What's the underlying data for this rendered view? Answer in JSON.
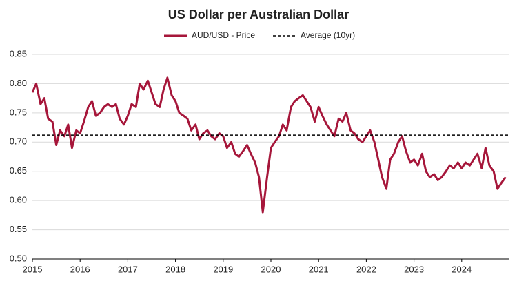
{
  "chart_data": {
    "type": "line",
    "title": "US Dollar per Australian Dollar",
    "x": [
      2015,
      2015.08,
      2015.17,
      2015.25,
      2015.33,
      2015.42,
      2015.5,
      2015.58,
      2015.67,
      2015.75,
      2015.83,
      2015.92,
      2016,
      2016.08,
      2016.17,
      2016.25,
      2016.33,
      2016.42,
      2016.5,
      2016.58,
      2016.67,
      2016.75,
      2016.83,
      2016.92,
      2017,
      2017.08,
      2017.17,
      2017.25,
      2017.33,
      2017.42,
      2017.5,
      2017.58,
      2017.67,
      2017.75,
      2017.83,
      2017.92,
      2018,
      2018.08,
      2018.17,
      2018.25,
      2018.33,
      2018.42,
      2018.5,
      2018.58,
      2018.67,
      2018.75,
      2018.83,
      2018.92,
      2019,
      2019.08,
      2019.17,
      2019.25,
      2019.33,
      2019.42,
      2019.5,
      2019.58,
      2019.67,
      2019.75,
      2019.83,
      2019.92,
      2020,
      2020.08,
      2020.17,
      2020.25,
      2020.33,
      2020.42,
      2020.5,
      2020.58,
      2020.67,
      2020.75,
      2020.83,
      2020.92,
      2021,
      2021.08,
      2021.17,
      2021.25,
      2021.33,
      2021.42,
      2021.5,
      2021.58,
      2021.67,
      2021.75,
      2021.83,
      2021.92,
      2022,
      2022.08,
      2022.17,
      2022.25,
      2022.33,
      2022.42,
      2022.5,
      2022.58,
      2022.67,
      2022.75,
      2022.83,
      2022.92,
      2023,
      2023.08,
      2023.17,
      2023.25,
      2023.33,
      2023.42,
      2023.5,
      2023.58,
      2023.67,
      2023.75,
      2023.83,
      2023.92,
      2024,
      2024.08,
      2024.17,
      2024.25,
      2024.33,
      2024.42,
      2024.5,
      2024.58,
      2024.67,
      2024.75,
      2024.83,
      2024.92
    ],
    "series": [
      {
        "name": "AUD/USD - Price",
        "color": "#a6163a",
        "values": [
          0.785,
          0.8,
          0.765,
          0.775,
          0.74,
          0.735,
          0.695,
          0.72,
          0.71,
          0.73,
          0.69,
          0.72,
          0.715,
          0.735,
          0.76,
          0.77,
          0.745,
          0.75,
          0.76,
          0.765,
          0.76,
          0.765,
          0.74,
          0.73,
          0.745,
          0.765,
          0.76,
          0.8,
          0.79,
          0.805,
          0.785,
          0.765,
          0.76,
          0.79,
          0.81,
          0.78,
          0.77,
          0.75,
          0.745,
          0.74,
          0.72,
          0.73,
          0.705,
          0.715,
          0.72,
          0.71,
          0.705,
          0.715,
          0.71,
          0.69,
          0.7,
          0.68,
          0.675,
          0.685,
          0.695,
          0.68,
          0.665,
          0.64,
          0.58,
          0.64,
          0.69,
          0.7,
          0.71,
          0.73,
          0.72,
          0.76,
          0.77,
          0.775,
          0.78,
          0.77,
          0.76,
          0.735,
          0.76,
          0.745,
          0.73,
          0.72,
          0.71,
          0.74,
          0.735,
          0.75,
          0.72,
          0.715,
          0.705,
          0.7,
          0.71,
          0.72,
          0.7,
          0.67,
          0.64,
          0.62,
          0.67,
          0.68,
          0.7,
          0.71,
          0.685,
          0.665,
          0.67,
          0.66,
          0.68,
          0.65,
          0.64,
          0.645,
          0.635,
          0.64,
          0.65,
          0.66,
          0.655,
          0.665,
          0.655,
          0.665,
          0.66,
          0.67,
          0.68,
          0.655,
          0.69,
          0.66,
          0.65,
          0.62,
          0.63,
          0.64
        ]
      }
    ],
    "average": {
      "name": "Average (10yr)",
      "value": 0.712,
      "color": "#000000"
    },
    "xlim": [
      2015,
      2025
    ],
    "xticks": [
      2015,
      2016,
      2017,
      2018,
      2019,
      2020,
      2021,
      2022,
      2023,
      2024
    ],
    "ylim": [
      0.5,
      0.85
    ],
    "yticks": [
      {
        "value": 0.5,
        "label": "0.50"
      },
      0.55,
      {
        "value": 0.6,
        "label": "0.60"
      },
      0.65,
      {
        "value": 0.7,
        "label": "0.70"
      },
      0.75,
      {
        "value": 0.8,
        "label": "0.80"
      },
      0.85
    ],
    "grid": true
  }
}
